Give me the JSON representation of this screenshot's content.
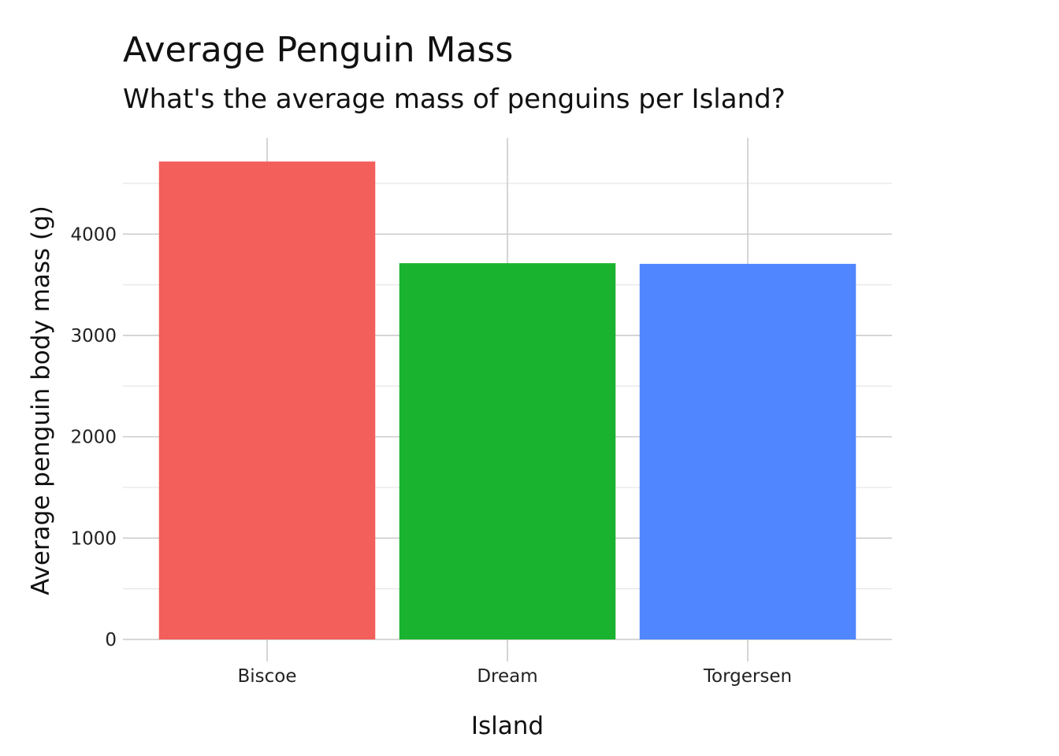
{
  "chart_data": {
    "type": "bar",
    "title": "Average Penguin Mass",
    "subtitle": "What's the average mass of penguins per Island?",
    "xlabel": "Island",
    "ylabel": "Average penguin body mass (g)",
    "categories": [
      "Biscoe",
      "Dream",
      "Torgersen"
    ],
    "values": [
      4716,
      3713,
      3706
    ],
    "colors": [
      "#F35F5B",
      "#1AB32F",
      "#5086FF"
    ],
    "ylim": [
      0,
      4950
    ],
    "yticks": [
      0,
      1000,
      2000,
      3000,
      4000
    ],
    "ytick_labels": [
      "0",
      "1000",
      "2000",
      "3000",
      "4000"
    ],
    "grid": true,
    "legend": "none"
  }
}
